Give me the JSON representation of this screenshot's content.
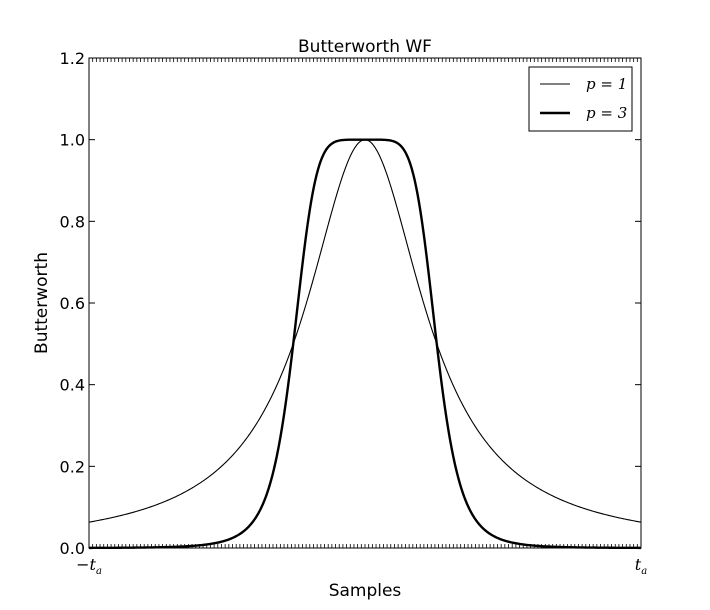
{
  "chart_data": {
    "type": "line",
    "title": "Butterworth WF",
    "xlabel": "Samples",
    "ylabel": "Butterworth",
    "xlim": [
      -1,
      1
    ],
    "ylim": [
      0,
      1.2
    ],
    "yticks": [
      "0.0",
      "0.2",
      "0.4",
      "0.6",
      "0.8",
      "1.0",
      "1.2"
    ],
    "xticks": [
      {
        "value": -1,
        "label": "−t",
        "sub": "a"
      },
      {
        "value": 1,
        "label": "t",
        "sub": "a"
      }
    ],
    "x_cutoff": 0.26,
    "series": [
      {
        "name": "p = 1",
        "order": 1,
        "color": "#000000",
        "width": "thin"
      },
      {
        "name": "p = 3",
        "order": 3,
        "color": "#000000",
        "width": "thick"
      }
    ],
    "legend": {
      "position": "top-right",
      "frame": true
    },
    "grid": false,
    "x_minor_ticks": "dense"
  }
}
